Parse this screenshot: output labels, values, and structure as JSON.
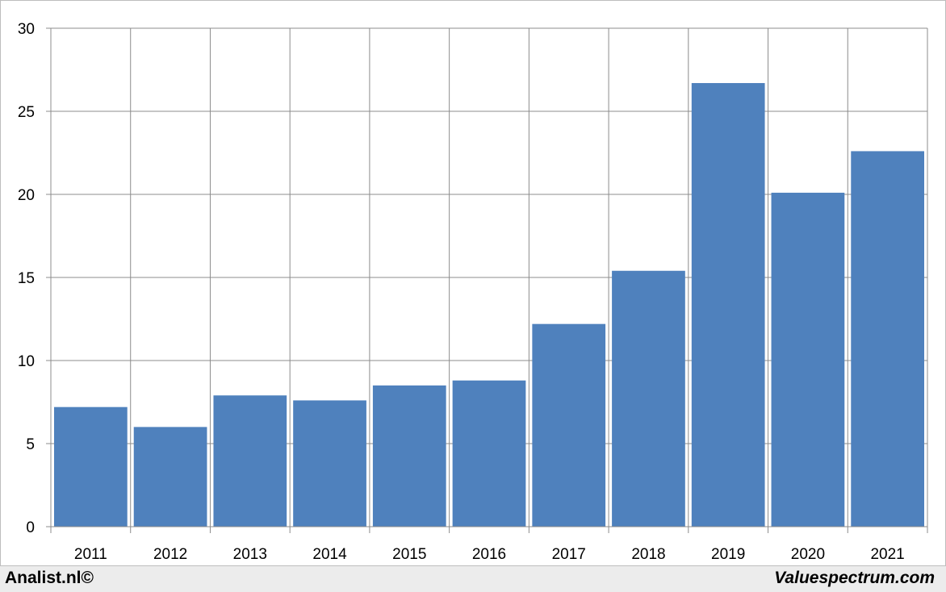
{
  "chart_data": {
    "type": "bar",
    "title": "",
    "xlabel": "",
    "ylabel": "",
    "categories": [
      "2011",
      "2012",
      "2013",
      "2014",
      "2015",
      "2016",
      "2017",
      "2018",
      "2019",
      "2020",
      "2021"
    ],
    "values": [
      7.2,
      6.0,
      7.9,
      7.6,
      8.5,
      8.8,
      12.2,
      15.4,
      26.7,
      20.1,
      22.6
    ],
    "ylim": [
      0,
      30
    ],
    "yticks": [
      0,
      5,
      10,
      15,
      20,
      25,
      30
    ],
    "grid": true,
    "legend": "none",
    "bar_color": "#4f81bd",
    "grid_color": "#8c8c8c"
  },
  "footer": {
    "left": "Analist.nl©",
    "right": "Valuespectrum.com"
  }
}
